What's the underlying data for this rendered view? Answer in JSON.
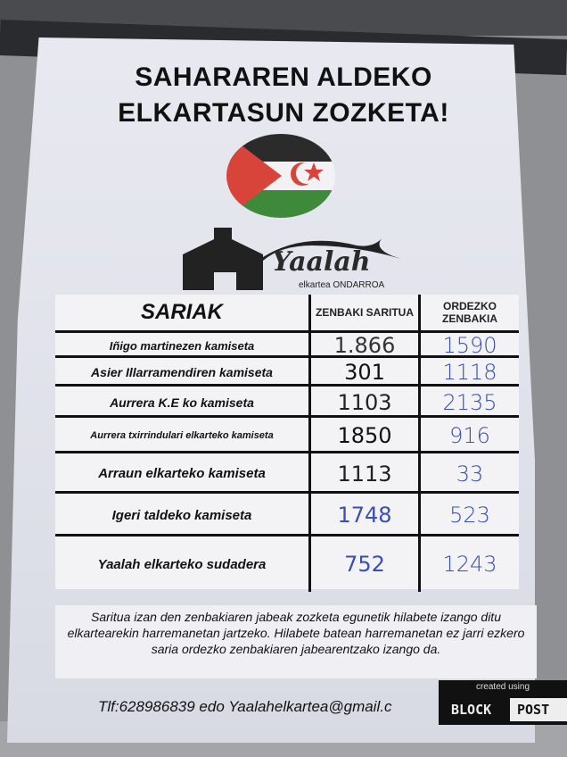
{
  "poster": {
    "title_line1": "SAHARAREN ALDEKO",
    "title_line2": "ELKARTASUN ZOZKETA!",
    "logo": {
      "name": "Yaalah",
      "sub": "elkartea ONDARROA"
    },
    "flag_colors": {
      "black": "#2b2b2b",
      "white": "#f2f2f4",
      "green": "#3f8a3a",
      "red": "#d9443a"
    },
    "table": {
      "headers": [
        "SARIAK",
        "ZENBAKI SARITUA",
        "ORDEZKO ZENBAKIA"
      ],
      "rows": [
        {
          "prize": "Iñigo martinezen kamiseta",
          "winner": "1.866",
          "substitute": "1590",
          "winner_color": "#333"
        },
        {
          "prize": "Asier Illarramendiren kamiseta",
          "winner": "301",
          "substitute": "1118",
          "winner_color": "#111"
        },
        {
          "prize": "Aurrera K.E ko kamiseta",
          "winner": "1103",
          "substitute": "2135",
          "winner_color": "#222"
        },
        {
          "prize": "Aurrera txirrindulari elkarteko kamiseta",
          "winner": "1850",
          "substitute": "916",
          "winner_color": "#111"
        },
        {
          "prize": "Arraun elkarteko kamiseta",
          "winner": "1113",
          "substitute": "33",
          "winner_color": "#222"
        },
        {
          "prize": "Igeri taldeko kamiseta",
          "winner": "1748",
          "substitute": "523",
          "winner_color": "#3a4fb3"
        },
        {
          "prize": "Yaalah elkarteko sudadera",
          "winner": "752",
          "substitute": "1243",
          "winner_color": "#3a4fb3"
        }
      ]
    },
    "notice": "Saritua izan den zenbakiaren jabeak zozketa egunetik hilabete izango ditu elkartearekin harremanetan jartzeko. Hilabete batean harremanetan ez jarri ezkero saria ordezko zenbakiaren jabearentzako izango da.",
    "contact": "Tlf:628986839 edo Yaalahelkartea@gmail.c",
    "watermark": {
      "created": "created using",
      "block": "BLOCK",
      "posters": "POST"
    }
  }
}
